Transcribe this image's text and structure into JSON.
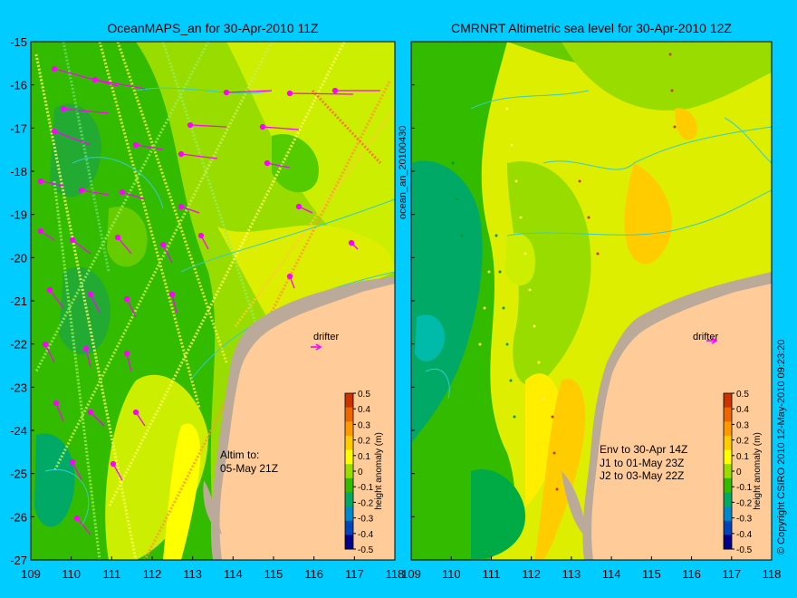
{
  "panels": [
    {
      "title": "OceanMAPS_an for 30-Apr-2010 11Z",
      "info_lines": [
        "Altim to:",
        "05-May 21Z"
      ],
      "drifter_label": "drifter"
    },
    {
      "title": "CMRNRT Altimetric sea level  for 30-Apr-2010 12Z",
      "info_lines": [
        "Env to 30-Apr 14Z",
        "J1 to 01-May 23Z",
        "J2 to 03-May 22Z"
      ],
      "drifter_label": "drifter"
    }
  ],
  "center_vertical_label": "ocean_an_20100430",
  "colorbar": {
    "label": "height anomaly (m)",
    "ticks": [
      "0.5",
      "0.4",
      "0.3",
      "0.2",
      "0.1",
      "0",
      "-0.1",
      "-0.2",
      "-0.3",
      "-0.4",
      "-0.5"
    ],
    "colors": [
      "#cc3300",
      "#ee6600",
      "#ff9900",
      "#ffcc00",
      "#ffff00",
      "#99dd00",
      "#33bb00",
      "#00aa66",
      "#0088cc",
      "#0044bb",
      "#000088"
    ]
  },
  "x_ticks": [
    "109",
    "110",
    "111",
    "112",
    "113",
    "114",
    "115",
    "116",
    "117",
    "118"
  ],
  "y_ticks": [
    "-15",
    "-16",
    "-17",
    "-18",
    "-19",
    "-20",
    "-21",
    "-22",
    "-23",
    "-24",
    "-25",
    "-26",
    "-27"
  ],
  "right_side_label": "© Copyright CSIRO 2010   12-May-2010 09:23:20",
  "colors": {
    "background": "#00ccff",
    "land": "#ffcc99",
    "shelf": "#bbaa99",
    "ocean_green": "#33bb00",
    "ocean_yellow": "#ddee00",
    "arrow": "#ff00ff",
    "contour": "#33cccc"
  }
}
